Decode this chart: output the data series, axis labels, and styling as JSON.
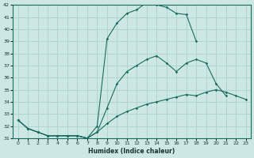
{
  "background_color": "#cde8e4",
  "grid_color": "#b0d4cf",
  "line_color": "#1a6b60",
  "xlabel": "Humidex (Indice chaleur)",
  "xlim": [
    -0.5,
    23.5
  ],
  "ylim": [
    31,
    42
  ],
  "yticks": [
    31,
    32,
    33,
    34,
    35,
    36,
    37,
    38,
    39,
    40,
    41,
    42
  ],
  "xticks": [
    0,
    1,
    2,
    3,
    4,
    5,
    6,
    7,
    8,
    9,
    10,
    11,
    12,
    13,
    14,
    15,
    16,
    17,
    18,
    19,
    20,
    21,
    22,
    23
  ],
  "line1_x": [
    0,
    1,
    2,
    3,
    4,
    5,
    6,
    7,
    8,
    9,
    10,
    11,
    12,
    13,
    14,
    15,
    16,
    17,
    18,
    19,
    20,
    21
  ],
  "line1_y": [
    32.5,
    31.8,
    31.5,
    31.2,
    31.2,
    31.2,
    31.2,
    31.0,
    32.0,
    39.2,
    40.5,
    41.3,
    41.6,
    42.2,
    42.0,
    41.8,
    41.3,
    41.2,
    39.0,
    null,
    null,
    null
  ],
  "line2_x": [
    0,
    1,
    2,
    3,
    4,
    5,
    6,
    7,
    8,
    9,
    10,
    11,
    12,
    13,
    14,
    15,
    16,
    17,
    18,
    19,
    20,
    21,
    22,
    23
  ],
  "line2_y": [
    32.5,
    31.8,
    31.5,
    31.2,
    31.2,
    31.2,
    31.2,
    31.0,
    31.5,
    33.5,
    35.5,
    36.5,
    37.0,
    37.5,
    37.8,
    37.2,
    36.5,
    37.2,
    37.5,
    37.2,
    35.5,
    34.5,
    null,
    null
  ],
  "line3_x": [
    0,
    1,
    2,
    3,
    4,
    5,
    6,
    7,
    8,
    9,
    10,
    11,
    12,
    13,
    14,
    15,
    16,
    17,
    18,
    19,
    20,
    21,
    22,
    23
  ],
  "line3_y": [
    32.5,
    31.8,
    31.5,
    31.2,
    31.2,
    31.2,
    31.2,
    31.0,
    31.5,
    32.2,
    32.8,
    33.2,
    33.5,
    33.8,
    34.0,
    34.2,
    34.4,
    34.6,
    34.5,
    34.8,
    35.0,
    34.8,
    34.5,
    34.2
  ]
}
